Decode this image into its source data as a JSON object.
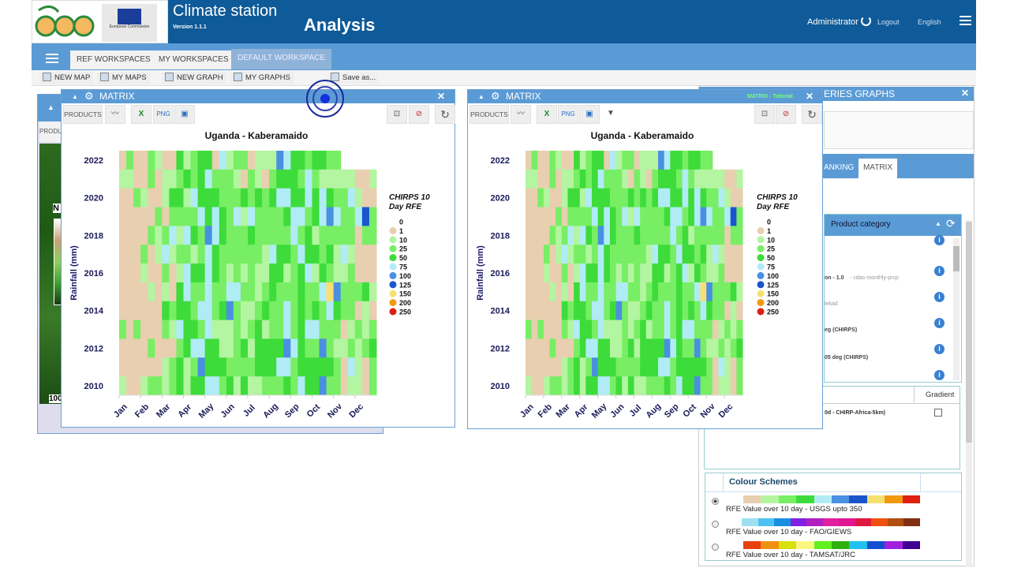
{
  "header": {
    "app_title": "Climate station",
    "version": "Version 1.1.1",
    "section": "Analysis",
    "user": "Administrator",
    "logout": "Logout",
    "language": "English",
    "ec_text": "European Commission"
  },
  "nav": {
    "tabs": [
      {
        "label": "REF WORKSPACES"
      },
      {
        "label": "MY WORKSPACES"
      },
      {
        "label": "DEFAULT WORKSPACE",
        "active": true
      }
    ]
  },
  "toolbar": {
    "new_map": "NEW MAP",
    "my_maps": "MY MAPS",
    "new_graph": "NEW GRAPH",
    "my_graphs": "MY GRAPHS",
    "save_as": "Save as..."
  },
  "map_panel": {
    "products": "PRODU",
    "legend_letter": "N",
    "scale": "100"
  },
  "matrix_left": {
    "title": "MATRIX",
    "products": "PRODUCTS"
  },
  "matrix_right": {
    "title": "MATRIX",
    "products": "PRODUCTS",
    "tutorial": "MATRIX - Tutorial"
  },
  "right_panel": {
    "title": "ERIES GRAPHS",
    "tabs": [
      "ANKING",
      "MATRIX"
    ],
    "product_category": "Product category",
    "products": [
      {
        "name": "",
        "extra": ""
      },
      {
        "name": "on - 1.0",
        "extra": " - cdas-monthly-prcp"
      },
      {
        "name": "",
        "extra": "lekad"
      },
      {
        "name": "eg (CHIRPS)",
        "extra": ""
      },
      {
        "name": "05 deg (CHIRPS)",
        "extra": ""
      },
      {
        "name": "",
        "extra": ""
      }
    ],
    "table_header": "Gradient",
    "table_row": "0d - CHIRP-Africa-5km)",
    "colour_schemes_title": "Colour Schemes",
    "schemes": [
      {
        "label": "RFE Value over 10 day - USGS upto 350",
        "selected": true,
        "colors": [
          "#e8cfb0",
          "#b3f5a0",
          "#78ee64",
          "#3ddc3a",
          "#b0ecf5",
          "#4a90e0",
          "#1a55cc",
          "#f8e070",
          "#f09a10",
          "#dd2010"
        ]
      },
      {
        "label": "RFE Value over 10 day - FAO/GIEWS",
        "selected": false,
        "colors": [
          "#9ee0f0",
          "#50c0f0",
          "#1890e0",
          "#8020e0",
          "#b020c0",
          "#e020a0",
          "#e01890",
          "#e01840",
          "#f05010",
          "#b05010",
          "#803010"
        ]
      },
      {
        "label": "RFE Value over 10 day - TAMSAT/JRC",
        "selected": false,
        "colors": [
          "#e84010",
          "#f09010",
          "#d8e010",
          "#f8f880",
          "#60f020",
          "#30b010",
          "#20c0f0",
          "#1050d0",
          "#a020e0",
          "#400090"
        ]
      }
    ]
  },
  "chart_data": {
    "type": "heatmap",
    "title": "Uganda - Kaberamaido",
    "ylabel": "Rainfall (mm)",
    "legend_title": "CHIRPS 10 Day RFE",
    "legend": [
      {
        "value": "0",
        "color": ""
      },
      {
        "value": "1",
        "color": "#e8cfb0"
      },
      {
        "value": "10",
        "color": "#b3f5a0"
      },
      {
        "value": "25",
        "color": "#78ee64"
      },
      {
        "value": "50",
        "color": "#3ddc3a"
      },
      {
        "value": "75",
        "color": "#b0ecf5"
      },
      {
        "value": "100",
        "color": "#4a90e0"
      },
      {
        "value": "125",
        "color": "#1a55cc"
      },
      {
        "value": "150",
        "color": "#f8e070"
      },
      {
        "value": "200",
        "color": "#f09a10"
      },
      {
        "value": "250",
        "color": "#dd2010"
      }
    ],
    "x_tick_labels": [
      "Jan",
      "Feb",
      "Mar",
      "Apr",
      "May",
      "Jun",
      "Jul",
      "Aug",
      "Sep",
      "Oct",
      "Nov",
      "Dec"
    ],
    "y_tick_labels": [
      "2022",
      "2020",
      "2018",
      "2016",
      "2014",
      "2012",
      "2010"
    ],
    "years": [
      2022,
      2021,
      2020,
      2019,
      2018,
      2017,
      2016,
      2015,
      2014,
      2013,
      2012,
      2011,
      2010
    ],
    "dekads_per_year": 36,
    "values": [
      [
        1,
        25,
        1,
        1,
        25,
        10,
        1,
        1,
        50,
        10,
        25,
        50,
        50,
        1,
        75,
        10,
        25,
        25,
        1,
        10,
        10,
        10,
        100,
        75,
        50,
        50,
        25,
        50,
        50,
        25,
        25,
        null,
        null,
        null,
        null,
        null
      ],
      [
        10,
        10,
        1,
        1,
        25,
        1,
        10,
        10,
        25,
        50,
        25,
        50,
        75,
        25,
        25,
        25,
        10,
        1,
        25,
        10,
        1,
        25,
        50,
        50,
        50,
        25,
        75,
        25,
        10,
        10,
        10,
        10,
        10,
        1,
        1,
        10
      ],
      [
        1,
        1,
        25,
        10,
        1,
        1,
        10,
        50,
        50,
        10,
        75,
        50,
        50,
        50,
        25,
        25,
        25,
        50,
        25,
        50,
        25,
        50,
        75,
        75,
        50,
        50,
        75,
        50,
        75,
        50,
        25,
        25,
        75,
        10,
        1,
        1
      ],
      [
        1,
        1,
        1,
        1,
        1,
        25,
        1,
        25,
        25,
        25,
        25,
        75,
        50,
        75,
        50,
        25,
        75,
        10,
        75,
        25,
        25,
        25,
        25,
        50,
        75,
        75,
        25,
        50,
        75,
        100,
        75,
        25,
        25,
        75,
        125,
        25
      ],
      [
        1,
        1,
        1,
        1,
        25,
        10,
        25,
        75,
        10,
        75,
        50,
        25,
        100,
        75,
        50,
        25,
        25,
        25,
        50,
        25,
        25,
        25,
        25,
        25,
        75,
        25,
        50,
        10,
        25,
        25,
        25,
        25,
        25,
        1,
        25,
        25
      ],
      [
        1,
        1,
        1,
        25,
        1,
        10,
        75,
        10,
        25,
        25,
        10,
        25,
        75,
        50,
        25,
        25,
        25,
        25,
        25,
        25,
        10,
        75,
        50,
        50,
        25,
        75,
        50,
        50,
        25,
        50,
        10,
        75,
        10,
        1,
        1,
        1
      ],
      [
        1,
        1,
        1,
        10,
        1,
        1,
        25,
        1,
        10,
        75,
        50,
        50,
        75,
        50,
        25,
        10,
        25,
        10,
        25,
        10,
        10,
        50,
        50,
        10,
        25,
        50,
        75,
        10,
        50,
        25,
        10,
        10,
        25,
        1,
        1,
        1
      ],
      [
        1,
        1,
        1,
        1,
        10,
        1,
        10,
        1,
        50,
        75,
        25,
        25,
        75,
        25,
        25,
        75,
        75,
        25,
        25,
        10,
        25,
        50,
        25,
        25,
        25,
        50,
        25,
        25,
        75,
        150,
        100,
        25,
        25,
        25,
        50,
        10
      ],
      [
        1,
        1,
        1,
        1,
        1,
        1,
        50,
        25,
        50,
        50,
        25,
        75,
        75,
        25,
        50,
        100,
        25,
        10,
        10,
        25,
        50,
        25,
        25,
        75,
        25,
        50,
        25,
        50,
        25,
        75,
        50,
        25,
        25,
        1,
        10,
        1
      ],
      [
        25,
        1,
        25,
        1,
        1,
        1,
        25,
        10,
        75,
        50,
        50,
        25,
        75,
        10,
        10,
        10,
        25,
        10,
        25,
        50,
        10,
        25,
        25,
        75,
        25,
        50,
        75,
        75,
        25,
        25,
        25,
        1,
        10,
        25,
        10,
        25
      ],
      [
        1,
        1,
        1,
        1,
        25,
        1,
        1,
        1,
        25,
        50,
        75,
        75,
        50,
        50,
        10,
        10,
        25,
        50,
        10,
        50,
        50,
        50,
        50,
        100,
        75,
        50,
        25,
        25,
        100,
        25,
        10,
        10,
        25,
        10,
        25,
        50
      ],
      [
        1,
        1,
        1,
        1,
        1,
        1,
        10,
        25,
        50,
        10,
        25,
        100,
        50,
        50,
        50,
        25,
        25,
        25,
        25,
        50,
        50,
        50,
        75,
        75,
        25,
        50,
        50,
        50,
        50,
        50,
        25,
        1,
        75,
        10,
        1,
        25
      ],
      [
        10,
        1,
        1,
        10,
        25,
        25,
        10,
        25,
        50,
        10,
        50,
        50,
        75,
        75,
        25,
        50,
        10,
        50,
        10,
        10,
        25,
        25,
        25,
        50,
        25,
        75,
        50,
        50,
        100,
        25,
        25,
        1,
        10,
        10,
        1,
        25
      ]
    ]
  }
}
